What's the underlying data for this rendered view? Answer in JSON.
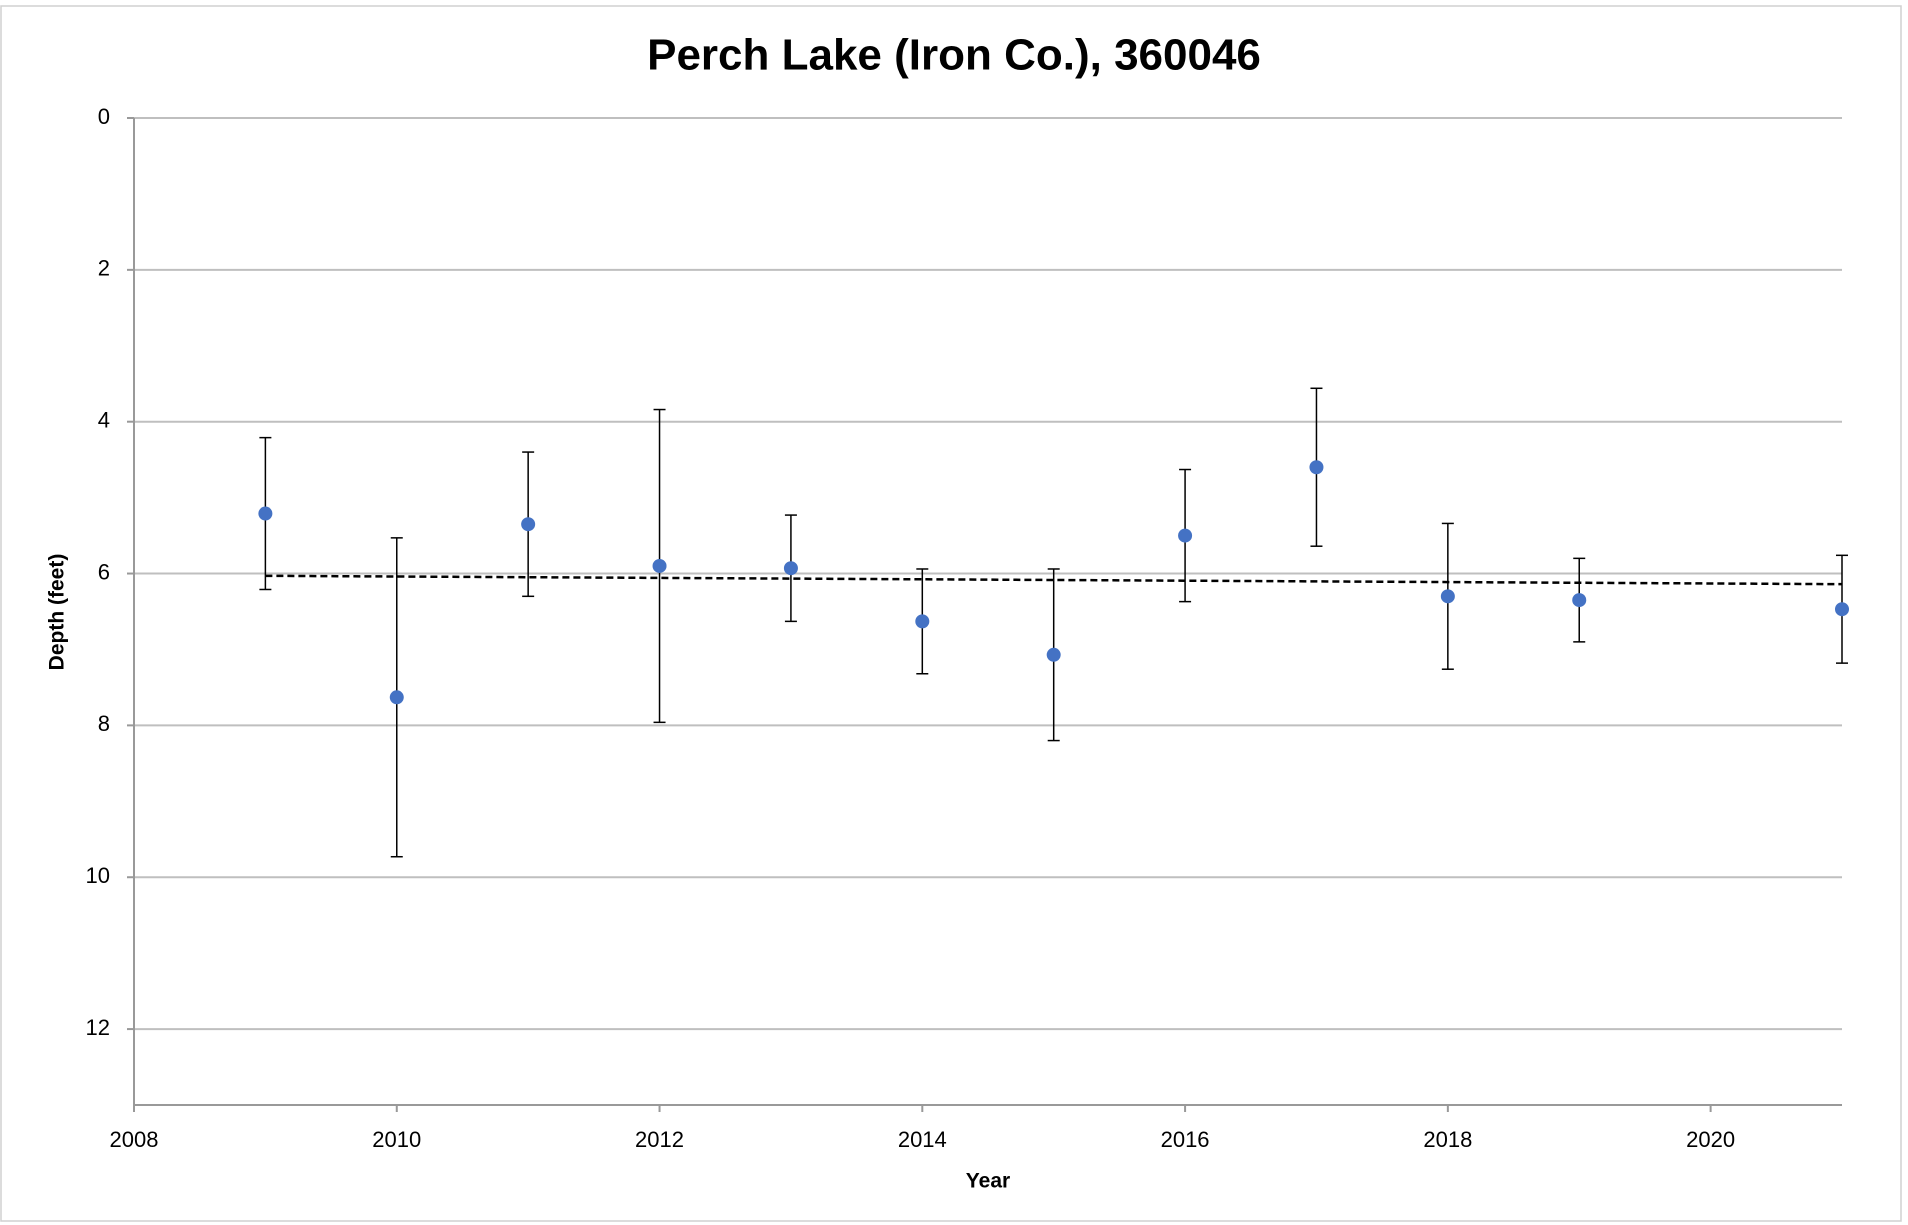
{
  "chart_data": {
    "type": "scatter",
    "title": "Perch Lake (Iron Co.), 360046",
    "x_label": "Year",
    "y_label": "Depth (feet)",
    "series": [
      {
        "name": "Depth",
        "color": "#4472c4",
        "x": [
          2009,
          2010,
          2011,
          2012,
          2013,
          2014,
          2015,
          2016,
          2017,
          2018,
          2019,
          2021
        ],
        "values": [
          5.21,
          7.63,
          5.35,
          5.9,
          5.93,
          6.63,
          7.07,
          5.5,
          4.6,
          6.3,
          6.35,
          6.47
        ],
        "errors": [
          1.0,
          2.1,
          0.95,
          2.06,
          0.7,
          0.69,
          1.13,
          0.87,
          1.04,
          0.96,
          0.55,
          0.71
        ]
      }
    ],
    "trendline": {
      "x": [
        2009,
        2021
      ],
      "values": [
        6.03,
        6.14
      ],
      "color": "#000000"
    },
    "xlim": [
      2008,
      2021
    ],
    "xticks": [
      2008,
      2010,
      2012,
      2014,
      2016,
      2018,
      2020
    ],
    "ylim": [
      0,
      13
    ],
    "yticks": [
      0,
      2,
      4,
      6,
      8,
      10,
      12
    ],
    "y_reversed": true,
    "grid": true
  }
}
